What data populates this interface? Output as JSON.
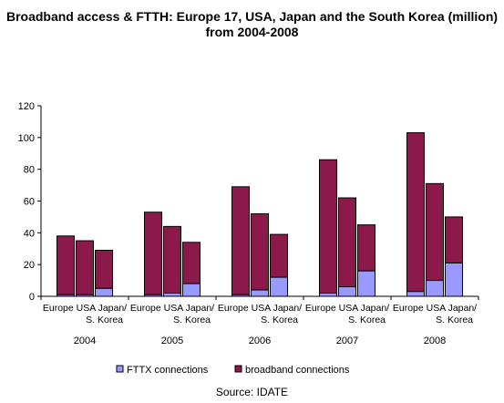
{
  "title_line1": "Broadband access & FTTH: Europe 17, USA, Japan and the South Korea (million)",
  "title_line2": "from 2004-2008",
  "source": "Source: IDATE",
  "colors": {
    "broadband": "#8B1A4A",
    "fttx": "#9999FF",
    "edge": "#000000"
  },
  "chart_data": {
    "type": "bar",
    "stacked": true,
    "ylim": [
      0,
      120
    ],
    "yticks": [
      0,
      20,
      40,
      60,
      80,
      100,
      120
    ],
    "groups": [
      "2004",
      "2005",
      "2006",
      "2007",
      "2008"
    ],
    "category_labels": [
      [
        "Europe",
        ""
      ],
      [
        "USA",
        ""
      ],
      [
        "Japan/",
        "S. Korea"
      ]
    ],
    "legend_position": "bottom",
    "series": [
      {
        "name": "FTTX connections",
        "values": [
          [
            1,
            1,
            5
          ],
          [
            1,
            2,
            8
          ],
          [
            1,
            4,
            12
          ],
          [
            2,
            6,
            16
          ],
          [
            3,
            10,
            21
          ]
        ]
      },
      {
        "name": "broadband connections",
        "values": [
          [
            37,
            34,
            24
          ],
          [
            52,
            42,
            26
          ],
          [
            68,
            48,
            27
          ],
          [
            84,
            56,
            29
          ],
          [
            100,
            61,
            29
          ]
        ]
      }
    ]
  }
}
